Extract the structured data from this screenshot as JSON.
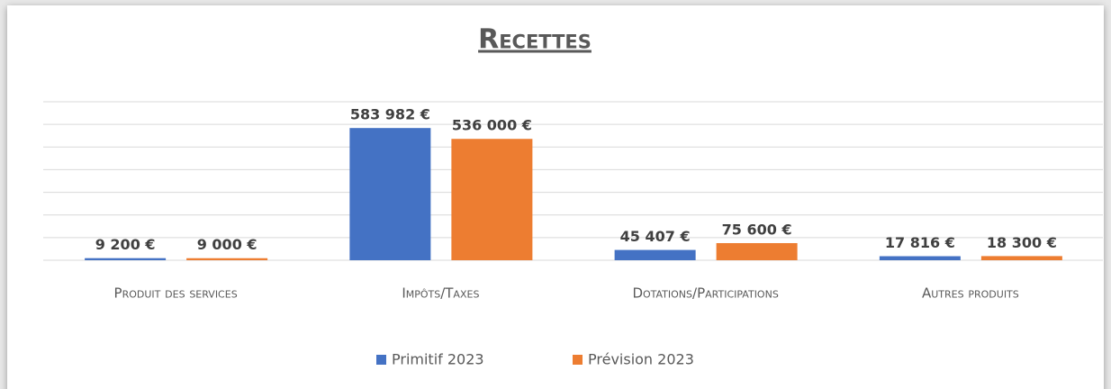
{
  "chart_data": {
    "type": "bar",
    "title": "Recettes",
    "categories": [
      "Produit des services",
      "Impôts/Taxes",
      "Dotations/Participations",
      "Autres produits"
    ],
    "series": [
      {
        "name": "Primitif 2023",
        "color": "#4472c4",
        "values": [
          9200,
          583982,
          45407,
          17816
        ],
        "value_labels": [
          "9 200 €",
          "583 982 €",
          "45 407 €",
          "17 816 €"
        ]
      },
      {
        "name": "Prévision 2023",
        "color": "#ed7d31",
        "values": [
          9000,
          536000,
          75600,
          18300
        ],
        "value_labels": [
          "9 000 €",
          "536 000 €",
          "75 600 €",
          "18 300 €"
        ]
      }
    ],
    "ylim": [
      0,
      700000
    ],
    "yticks": [
      0,
      100000,
      200000,
      300000,
      400000,
      500000,
      600000,
      700000
    ],
    "grid": true
  }
}
